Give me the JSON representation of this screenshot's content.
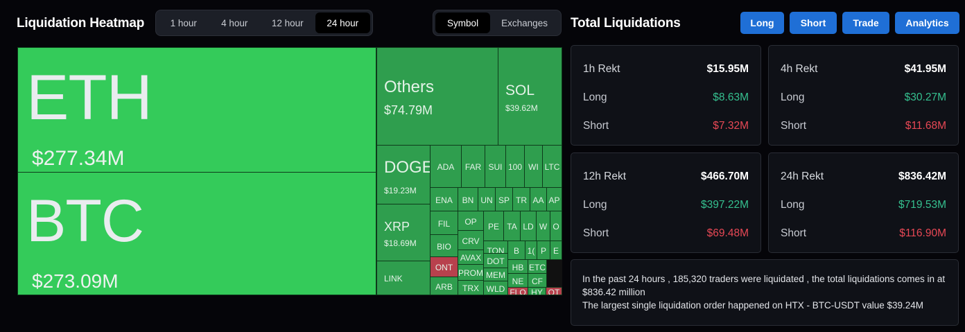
{
  "heatmap": {
    "title": "Liquidation Heatmap",
    "ranges": [
      "1 hour",
      "4 hour",
      "12 hour",
      "24 hour"
    ],
    "active_range": "24 hour",
    "views": [
      "Symbol",
      "Exchanges"
    ],
    "active_view": "Symbol",
    "tiles": [
      {
        "symbol": "ETH",
        "value": "$277.34M",
        "status": "long"
      },
      {
        "symbol": "BTC",
        "value": "$273.09M",
        "status": "long"
      },
      {
        "symbol": "Others",
        "value": "$74.79M",
        "status": "long"
      },
      {
        "symbol": "SOL",
        "value": "$39.62M",
        "status": "long"
      },
      {
        "symbol": "DOGE",
        "value": "$19.23M",
        "status": "long"
      },
      {
        "symbol": "XRP",
        "value": "$18.69M",
        "status": "long"
      },
      {
        "symbol": "LINK",
        "value": "",
        "status": "long"
      },
      {
        "symbol": "ADA",
        "status": "long"
      },
      {
        "symbol": "FAR",
        "status": "long"
      },
      {
        "symbol": "SUI",
        "status": "long"
      },
      {
        "symbol": "100",
        "status": "long"
      },
      {
        "symbol": "WI",
        "status": "long"
      },
      {
        "symbol": "LTC",
        "status": "long"
      },
      {
        "symbol": "ENA",
        "status": "long"
      },
      {
        "symbol": "BN",
        "status": "long"
      },
      {
        "symbol": "UN",
        "status": "long"
      },
      {
        "symbol": "SP",
        "status": "long"
      },
      {
        "symbol": "TR",
        "status": "long"
      },
      {
        "symbol": "AA",
        "status": "long"
      },
      {
        "symbol": "AP",
        "status": "long"
      },
      {
        "symbol": "FIL",
        "status": "long"
      },
      {
        "symbol": "OP",
        "status": "long"
      },
      {
        "symbol": "PE",
        "status": "long"
      },
      {
        "symbol": "TA",
        "status": "long"
      },
      {
        "symbol": "LD",
        "status": "long"
      },
      {
        "symbol": "W",
        "status": "long"
      },
      {
        "symbol": "O",
        "status": "long"
      },
      {
        "symbol": "BIO",
        "status": "long"
      },
      {
        "symbol": "CRV",
        "status": "long"
      },
      {
        "symbol": "TON",
        "status": "long"
      },
      {
        "symbol": "B",
        "status": "long"
      },
      {
        "symbol": "1(",
        "status": "long"
      },
      {
        "symbol": "P",
        "status": "long"
      },
      {
        "symbol": "E",
        "status": "long"
      },
      {
        "symbol": "AVAX",
        "status": "long"
      },
      {
        "symbol": "DOT",
        "status": "long"
      },
      {
        "symbol": "ONT",
        "status": "short"
      },
      {
        "symbol": "PROM",
        "status": "long"
      },
      {
        "symbol": "MEM",
        "status": "long"
      },
      {
        "symbol": "HB",
        "status": "long"
      },
      {
        "symbol": "ETC",
        "status": "long"
      },
      {
        "symbol": "NE",
        "status": "long"
      },
      {
        "symbol": "CF",
        "status": "long"
      },
      {
        "symbol": "ARB",
        "status": "long"
      },
      {
        "symbol": "TRX",
        "status": "long"
      },
      {
        "symbol": "WLD",
        "status": "long"
      },
      {
        "symbol": "FLO",
        "status": "short"
      },
      {
        "symbol": "HY",
        "status": "long"
      },
      {
        "symbol": "QT",
        "status": "short"
      }
    ]
  },
  "totals": {
    "title": "Total Liquidations",
    "buttons": [
      "Long",
      "Short",
      "Trade",
      "Analytics"
    ],
    "cards": [
      {
        "title": "1h Rekt",
        "total": "$15.95M",
        "long_label": "Long",
        "long": "$8.63M",
        "short_label": "Short",
        "short": "$7.32M"
      },
      {
        "title": "4h Rekt",
        "total": "$41.95M",
        "long_label": "Long",
        "long": "$30.27M",
        "short_label": "Short",
        "short": "$11.68M"
      },
      {
        "title": "12h Rekt",
        "total": "$466.70M",
        "long_label": "Long",
        "long": "$397.22M",
        "short_label": "Short",
        "short": "$69.48M"
      },
      {
        "title": "24h Rekt",
        "total": "$836.42M",
        "long_label": "Long",
        "long": "$719.53M",
        "short_label": "Short",
        "short": "$116.90M"
      }
    ],
    "summary_line1": "In the past 24 hours , 185,320 traders were liquidated , the total liquidations comes in at $836.42 million",
    "summary_line2": "The largest single liquidation order happened on HTX - BTC-USDT value $39.24M"
  },
  "colors": {
    "big_tile": "#34cb5a",
    "tile": "#2f9e4e",
    "short_tile": "#b8414d",
    "accent_button": "#1f6fd6",
    "long_text": "#35c08f",
    "short_text": "#e84855"
  }
}
